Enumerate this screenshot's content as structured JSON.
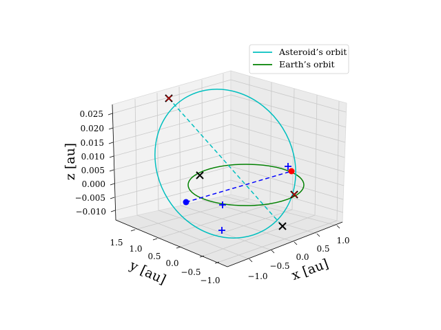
{
  "chart_data": {
    "type": "line",
    "projection": "3d",
    "grid": true,
    "legend_position": "top-right",
    "axes": {
      "x": {
        "label": "x [au]",
        "ticks": [
          "1.0",
          "0.5",
          "0.0",
          "−0.5",
          "−1.0"
        ]
      },
      "y": {
        "label": "y [au]",
        "ticks": [
          "1.5",
          "1.0",
          "0.5",
          "0.0",
          "−0.5",
          "−1.0"
        ]
      },
      "z": {
        "label": "z [au]",
        "ticks": [
          "0.025",
          "0.020",
          "0.015",
          "0.010",
          "0.005",
          "0.000",
          "−0.005",
          "−0.010"
        ]
      }
    },
    "series": [
      {
        "name": "Asteroid’s orbit",
        "color": "#00bfbf",
        "style": "solid"
      },
      {
        "name": "Earth’s orbit",
        "color": "#008000",
        "style": "solid"
      }
    ],
    "colors": {
      "sun": "#ff0000",
      "earth": "#0000ff",
      "cross_black": "#000000",
      "cross_red": "#cc0000",
      "plus": "#0000ff"
    }
  }
}
